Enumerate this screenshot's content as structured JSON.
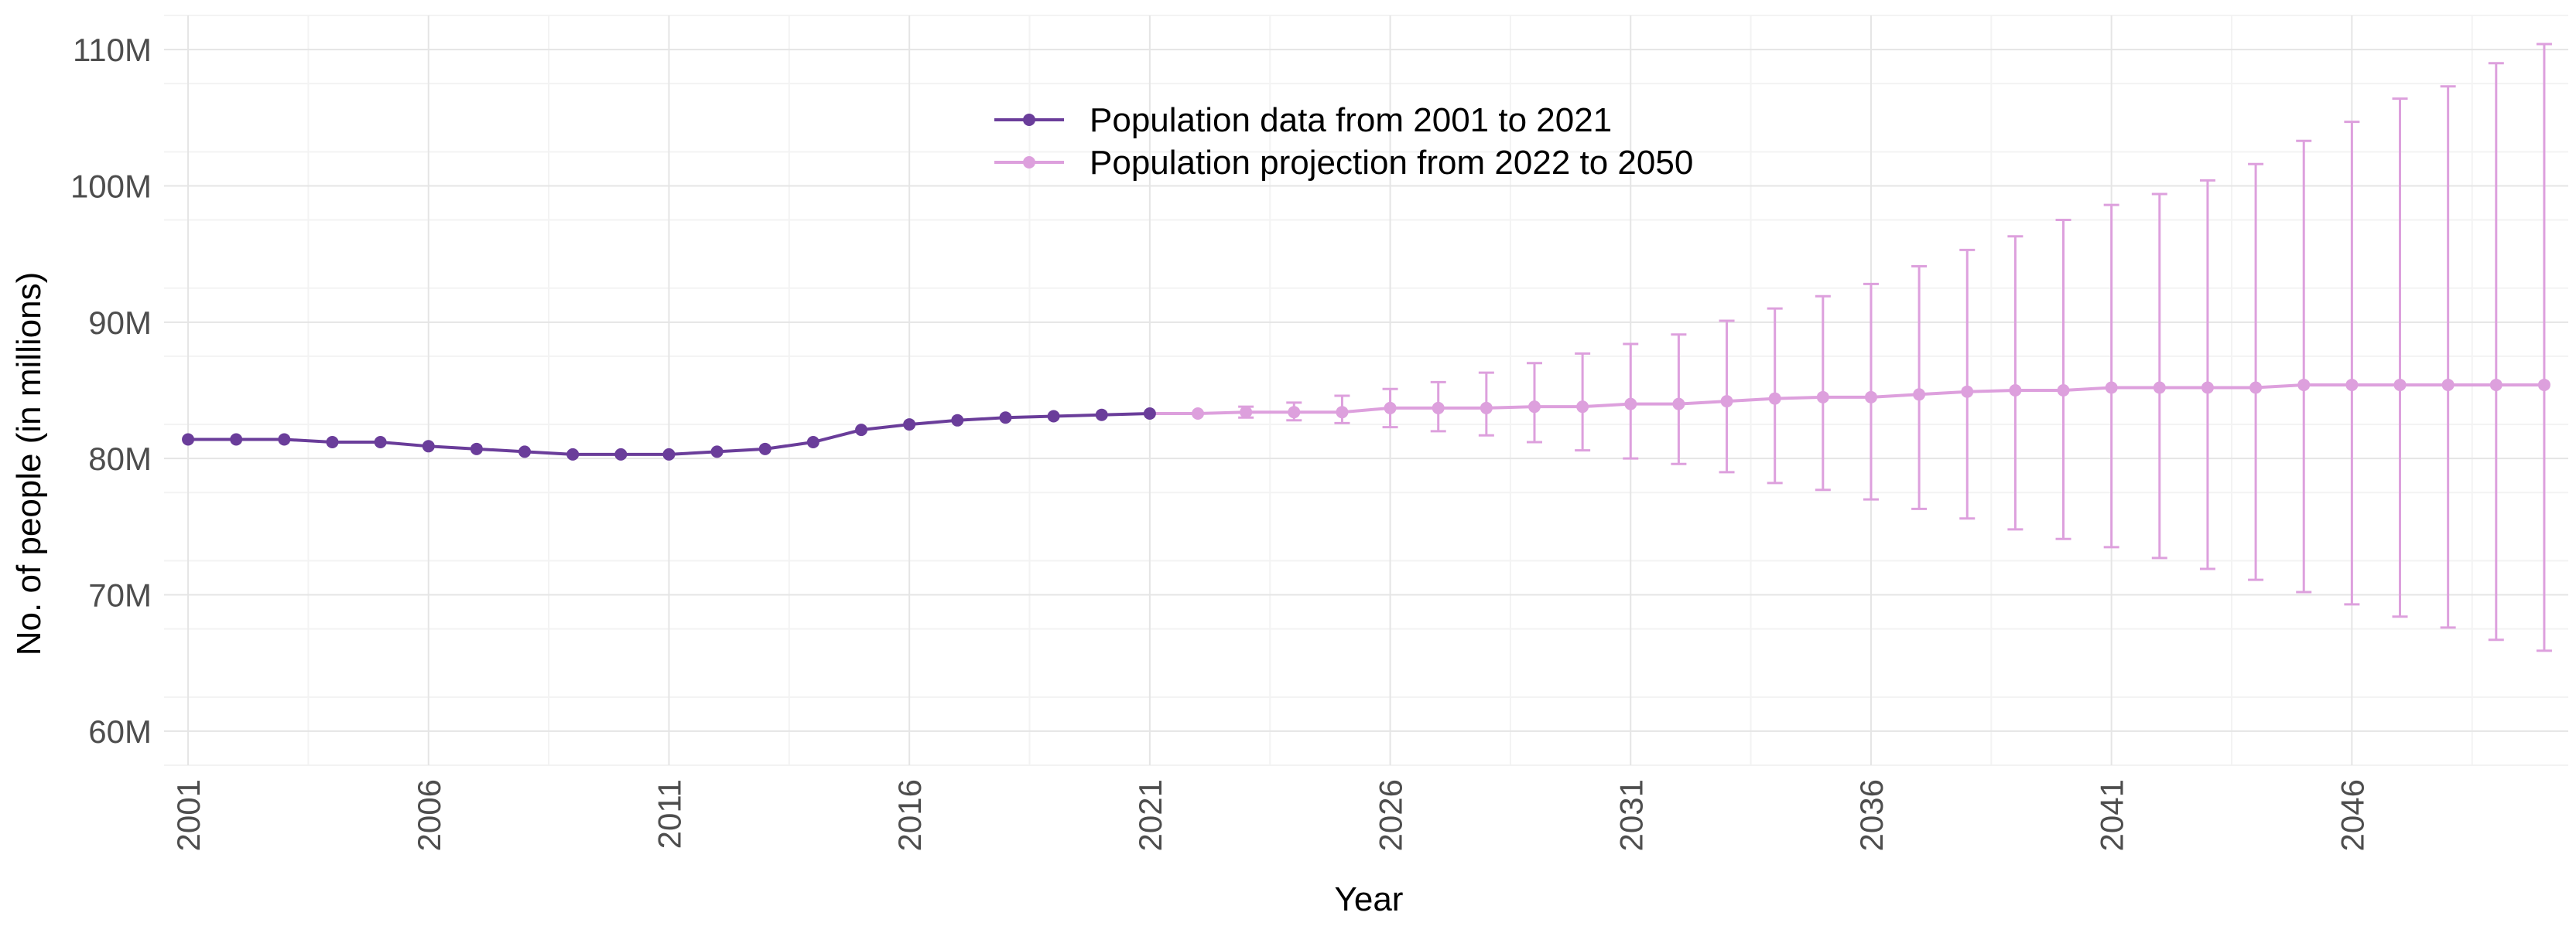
{
  "chart_data": {
    "type": "line",
    "xlabel": "Year",
    "ylabel": "No. of people (in millions)",
    "ylim": [
      57.5,
      112.5
    ],
    "xlim": [
      2000.5,
      2050.5
    ],
    "y_ticks": [
      60,
      70,
      80,
      90,
      100,
      110
    ],
    "y_tick_labels": [
      "60M",
      "70M",
      "80M",
      "90M",
      "100M",
      "110M"
    ],
    "x_ticks": [
      2001,
      2006,
      2011,
      2016,
      2021,
      2026,
      2031,
      2036,
      2041,
      2046
    ],
    "x_tick_labels": [
      "2001",
      "2006",
      "2011",
      "2016",
      "2021",
      "2026",
      "2031",
      "2036",
      "2041",
      "2046"
    ],
    "grid": true,
    "legend_position": "top-center",
    "series": [
      {
        "name": "Population data from 2001 to 2021",
        "color": "#6a3d9a",
        "x": [
          2001,
          2002,
          2003,
          2004,
          2005,
          2006,
          2007,
          2008,
          2009,
          2010,
          2011,
          2012,
          2013,
          2014,
          2015,
          2016,
          2017,
          2018,
          2019,
          2020,
          2021
        ],
        "values": [
          81.4,
          81.4,
          81.4,
          81.2,
          81.2,
          80.9,
          80.7,
          80.5,
          80.3,
          80.3,
          80.3,
          80.5,
          80.7,
          81.2,
          82.1,
          82.5,
          82.8,
          83.0,
          83.1,
          83.2,
          83.3
        ]
      },
      {
        "name": "Population projection from 2022 to 2050",
        "color": "#dda0dd",
        "x": [
          2022,
          2023,
          2024,
          2025,
          2026,
          2027,
          2028,
          2029,
          2030,
          2031,
          2032,
          2033,
          2034,
          2035,
          2036,
          2037,
          2038,
          2039,
          2040,
          2041,
          2042,
          2043,
          2044,
          2045,
          2046,
          2047,
          2048,
          2049,
          2050
        ],
        "values": [
          83.3,
          83.4,
          83.4,
          83.4,
          83.7,
          83.7,
          83.7,
          83.8,
          83.8,
          84.0,
          84.0,
          84.2,
          84.4,
          84.5,
          84.5,
          84.7,
          84.9,
          85.0,
          85.0,
          85.2,
          85.2,
          85.2,
          85.2,
          85.4,
          85.4,
          85.4,
          85.4,
          85.4,
          85.4
        ],
        "lower": [
          83.3,
          83.0,
          82.8,
          82.6,
          82.3,
          82.0,
          81.7,
          81.2,
          80.6,
          80.0,
          79.6,
          79.0,
          78.2,
          77.7,
          77.0,
          76.3,
          75.6,
          74.8,
          74.1,
          73.5,
          72.7,
          71.9,
          71.1,
          70.2,
          69.3,
          68.4,
          67.6,
          66.7,
          65.9
        ],
        "upper": [
          83.3,
          83.8,
          84.1,
          84.6,
          85.1,
          85.6,
          86.3,
          87.0,
          87.7,
          88.4,
          89.1,
          90.1,
          91.0,
          91.9,
          92.8,
          94.1,
          95.3,
          96.3,
          97.5,
          98.6,
          99.4,
          100.4,
          101.6,
          103.3,
          104.7,
          106.4,
          107.3,
          109.0,
          110.4
        ]
      }
    ]
  }
}
